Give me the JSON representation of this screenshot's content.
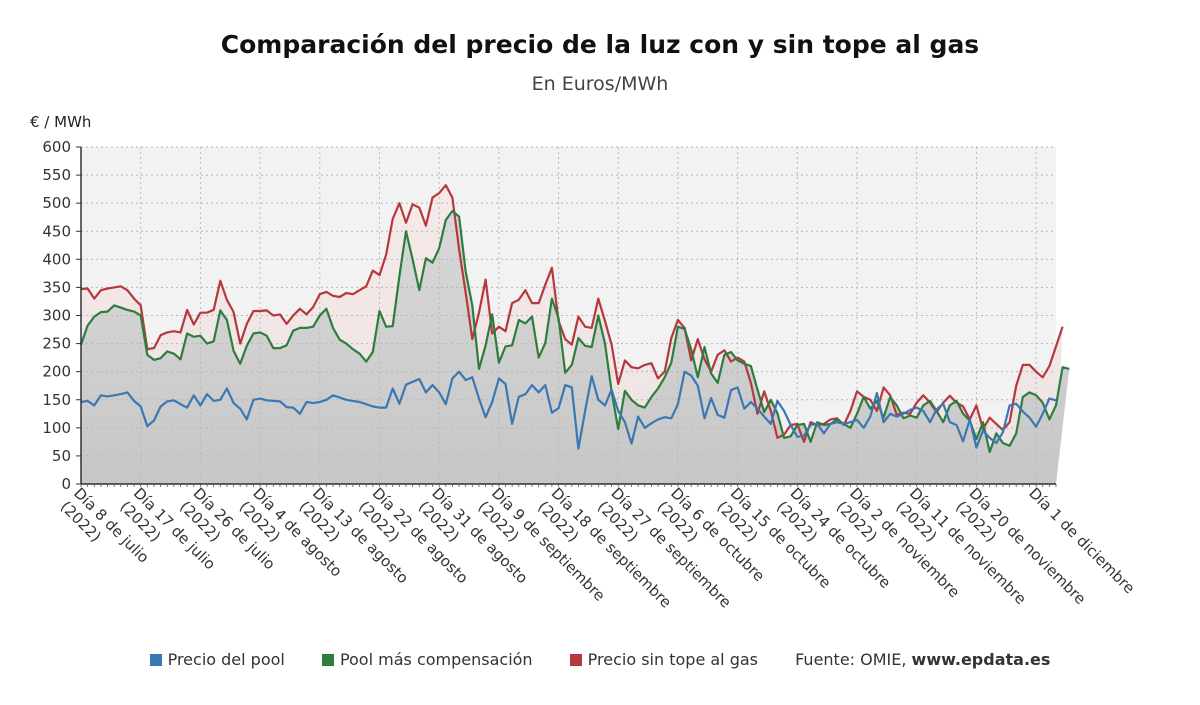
{
  "chart_data": {
    "type": "line",
    "title": "Comparación del precio de la luz con y sin tope al gas",
    "subtitle": "En Euros/MWh",
    "ylabel": "€ / MWh",
    "ylim": [
      0,
      600
    ],
    "yticks": [
      "0",
      "50",
      "100",
      "150",
      "200",
      "250",
      "300",
      "350",
      "400",
      "450",
      "500",
      "550",
      "600"
    ],
    "xlabels": [
      "Día 8 de julio (2022)",
      "Día 17 de julio (2022)",
      "Día 26 de julio (2022)",
      "Día 4 de agosto (2022)",
      "Día 13 de agosto (2022)",
      "Día 22 de agosto (2022)",
      "Día 31 de agosto (2022)",
      "Día 9 de septiembre (2022)",
      "Día 18 de septiembre (2022)",
      "Día 27 de septiembre (2022)",
      "Día 6 de octubre (2022)",
      "Día 15 de octubre (2022)",
      "Día 24 de octubre (2022)",
      "Día 2 de noviembre (2022)",
      "Día 11 de noviembre (2022)",
      "Día 20 de noviembre (2022)",
      "Día 1 de diciembre"
    ],
    "grid": true,
    "legend_position": "bottom",
    "series": [
      {
        "name": "Precio del pool",
        "color": "#3a78b4",
        "values": [
          146,
          148,
          140,
          158,
          156,
          158,
          160,
          163,
          148,
          138,
          103,
          113,
          138,
          147,
          149,
          142,
          136,
          158,
          140,
          160,
          148,
          150,
          170,
          144,
          134,
          115,
          150,
          152,
          149,
          148,
          147,
          137,
          136,
          125,
          146,
          144,
          146,
          150,
          158,
          154,
          150,
          148,
          146,
          142,
          138,
          136,
          136,
          170,
          143,
          177,
          182,
          187,
          163,
          176,
          163,
          142,
          188,
          200,
          185,
          190,
          152,
          119,
          146,
          188,
          178,
          107,
          155,
          160,
          176,
          163,
          176,
          127,
          135,
          176,
          172,
          63,
          130,
          192,
          150,
          140,
          168,
          130,
          110,
          72,
          120,
          100,
          108,
          115,
          119,
          117,
          142,
          200,
          193,
          175,
          117,
          153,
          123,
          118,
          167,
          172,
          134,
          146,
          134,
          120,
          107,
          148,
          130,
          105,
          84,
          86,
          105,
          107,
          90,
          107,
          110,
          107,
          110,
          114,
          100,
          120,
          162,
          110,
          125,
          120,
          125,
          132,
          136,
          130,
          110,
          133,
          143,
          110,
          105,
          76,
          115,
          65,
          95,
          82,
          73,
          92,
          140,
          143,
          129,
          118,
          102,
          125,
          152,
          149
        ],
        "fill": false
      },
      {
        "name": "Pool más compensación",
        "color": "#2e7d3e",
        "values": [
          248,
          282,
          298,
          306,
          307,
          318,
          314,
          310,
          307,
          300,
          230,
          221,
          224,
          236,
          232,
          222,
          268,
          262,
          264,
          250,
          254,
          309,
          292,
          237,
          214,
          246,
          268,
          270,
          264,
          242,
          242,
          247,
          273,
          278,
          278,
          280,
          300,
          312,
          278,
          257,
          250,
          240,
          232,
          218,
          235,
          308,
          280,
          281,
          370,
          450,
          400,
          345,
          402,
          394,
          420,
          470,
          486,
          476,
          378,
          318,
          205,
          247,
          302,
          216,
          245,
          247,
          292,
          286,
          298,
          225,
          251,
          330,
          295,
          198,
          212,
          260,
          246,
          244,
          300,
          250,
          165,
          98,
          166,
          150,
          140,
          136,
          155,
          170,
          190,
          216,
          280,
          276,
          240,
          190,
          244,
          197,
          180,
          230,
          235,
          220,
          214,
          210,
          168,
          128,
          150,
          126,
          82,
          85,
          105,
          107,
          75,
          110,
          105,
          107,
          115,
          107,
          100,
          125,
          155,
          134,
          148,
          118,
          155,
          140,
          117,
          122,
          118,
          140,
          148,
          130,
          110,
          140,
          148,
          125,
          113,
          80,
          110,
          57,
          90,
          73,
          68,
          90,
          155,
          163,
          158,
          145,
          115,
          140,
          208,
          205
        ],
        "fill": true
      },
      {
        "name": "Precio sin tope al gas",
        "color": "#b4383c",
        "values": [
          347,
          348,
          330,
          345,
          348,
          350,
          352,
          345,
          330,
          318,
          240,
          242,
          265,
          270,
          272,
          270,
          310,
          284,
          305,
          305,
          310,
          362,
          328,
          306,
          250,
          285,
          308,
          308,
          309,
          300,
          302,
          285,
          300,
          312,
          302,
          315,
          338,
          342,
          335,
          333,
          340,
          338,
          345,
          352,
          380,
          372,
          408,
          472,
          500,
          465,
          498,
          492,
          460,
          510,
          518,
          532,
          510,
          418,
          340,
          258,
          305,
          364,
          268,
          280,
          272,
          322,
          328,
          345,
          322,
          322,
          355,
          385,
          290,
          258,
          248,
          298,
          280,
          278,
          330,
          290,
          248,
          178,
          220,
          208,
          206,
          212,
          215,
          188,
          200,
          260,
          292,
          278,
          220,
          258,
          222,
          200,
          230,
          238,
          218,
          225,
          218,
          180,
          125,
          165,
          130,
          82,
          88,
          105,
          107,
          75,
          110,
          105,
          107,
          115,
          117,
          105,
          130,
          165,
          155,
          150,
          130,
          172,
          158,
          123,
          127,
          125,
          145,
          158,
          145,
          128,
          145,
          157,
          145,
          138,
          115,
          140,
          98,
          118,
          107,
          96,
          110,
          175,
          212,
          212,
          200,
          190,
          210,
          245,
          280
        ],
        "fill": true
      }
    ],
    "source": {
      "prefix": "Fuente: OMIE, ",
      "site": "www.epdata.es"
    }
  }
}
